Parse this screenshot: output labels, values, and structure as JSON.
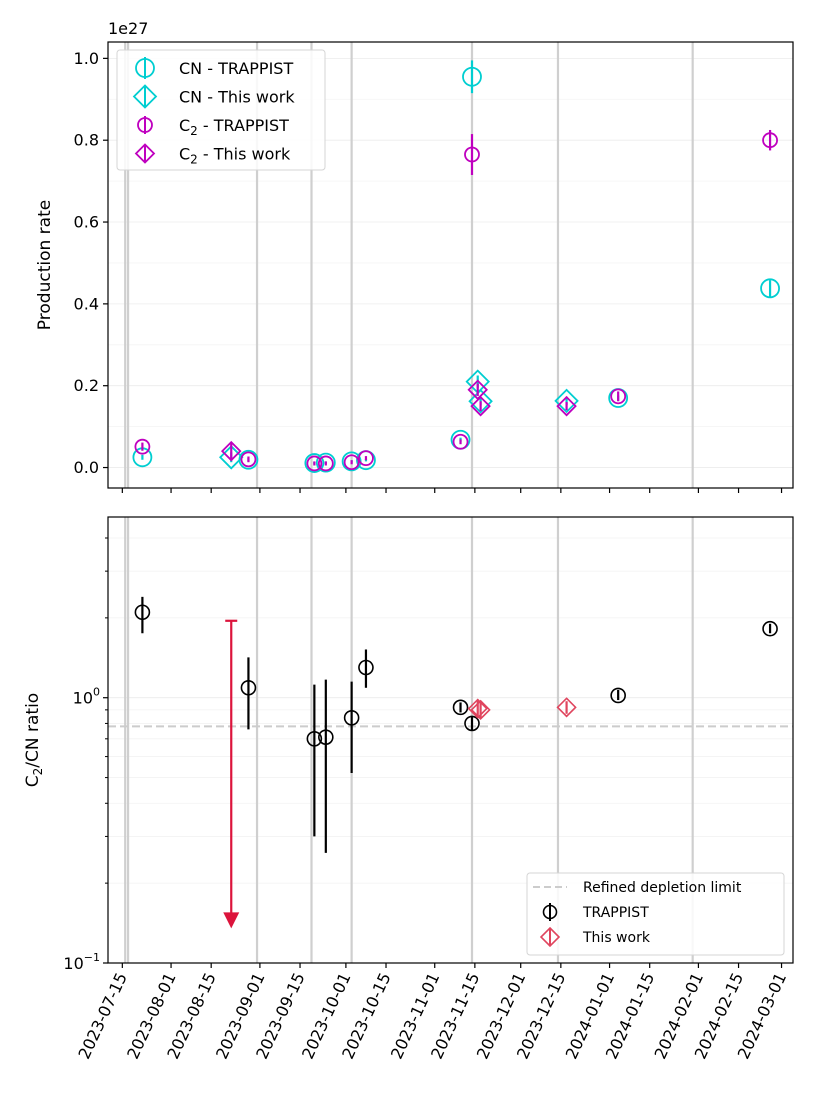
{
  "chart_data": [
    {
      "type": "scatter",
      "ylabel": "Production rate",
      "offset_label": "1e27",
      "y_ticks": [
        "0.0",
        "0.2",
        "0.4",
        "0.6",
        "0.8",
        "1.0"
      ],
      "ylim": [
        -0.05,
        1.04
      ],
      "xlim": [
        "2023-07-10",
        "2024-03-05"
      ],
      "legend": [
        {
          "label": "CN - TRAPPIST",
          "marker": "circle",
          "color": "#00CED1"
        },
        {
          "label": "CN - This work",
          "marker": "diamond",
          "color": "#00CED1"
        },
        {
          "label_main": "C",
          "label_sub": "2",
          "label_rest": " - TRAPPIST",
          "marker": "circle",
          "color": "#BF00BF"
        },
        {
          "label_main": "C",
          "label_sub": "2",
          "label_rest": " - This work",
          "marker": "diamond",
          "color": "#BF00BF"
        }
      ],
      "series": [
        {
          "name": "CN - TRAPPIST",
          "marker": "circle",
          "color": "#00CED1",
          "points": [
            {
              "x": "2023-07-22",
              "y": 0.025,
              "err": 0.006
            },
            {
              "x": "2023-08-28",
              "y": 0.019,
              "err": 0.004
            },
            {
              "x": "2023-09-20",
              "y": 0.011,
              "err": 0.003
            },
            {
              "x": "2023-09-24",
              "y": 0.012,
              "err": 0.003
            },
            {
              "x": "2023-10-03",
              "y": 0.015,
              "err": 0.003
            },
            {
              "x": "2023-10-08",
              "y": 0.018,
              "err": 0.003
            },
            {
              "x": "2023-11-10",
              "y": 0.068,
              "err": 0.005
            },
            {
              "x": "2023-11-14",
              "y": 0.955,
              "err": 0.04
            },
            {
              "x": "2024-01-04",
              "y": 0.17,
              "err": 0.006
            },
            {
              "x": "2024-02-26",
              "y": 0.438,
              "err": 0.02
            }
          ]
        },
        {
          "name": "CN - This work",
          "marker": "diamond",
          "color": "#00CED1",
          "points": [
            {
              "x": "2023-08-22",
              "y": 0.025,
              "err": 0.012
            },
            {
              "x": "2023-11-16",
              "y": 0.21,
              "err": 0.015
            },
            {
              "x": "2023-11-17",
              "y": 0.162,
              "err": 0.01
            },
            {
              "x": "2023-12-17",
              "y": 0.163,
              "err": 0.01
            }
          ]
        },
        {
          "name": "C2 - TRAPPIST",
          "marker": "circle",
          "color": "#BF00BF",
          "points": [
            {
              "x": "2023-07-22",
              "y": 0.051,
              "err": 0.01
            },
            {
              "x": "2023-08-28",
              "y": 0.02,
              "err": 0.007
            },
            {
              "x": "2023-09-20",
              "y": 0.01,
              "err": 0.005
            },
            {
              "x": "2023-09-24",
              "y": 0.01,
              "err": 0.005
            },
            {
              "x": "2023-10-03",
              "y": 0.013,
              "err": 0.005
            },
            {
              "x": "2023-10-08",
              "y": 0.023,
              "err": 0.005
            },
            {
              "x": "2023-11-10",
              "y": 0.063,
              "err": 0.006
            },
            {
              "x": "2023-11-14",
              "y": 0.765,
              "err": 0.05
            },
            {
              "x": "2024-01-04",
              "y": 0.174,
              "err": 0.012
            },
            {
              "x": "2024-02-26",
              "y": 0.8,
              "err": 0.025
            }
          ]
        },
        {
          "name": "C2 - This work",
          "marker": "diamond",
          "color": "#BF00BF",
          "points": [
            {
              "x": "2023-08-22",
              "y": 0.04,
              "err": 0.02
            },
            {
              "x": "2023-11-16",
              "y": 0.19,
              "err": 0.015
            },
            {
              "x": "2023-11-17",
              "y": 0.15,
              "err": 0.012
            },
            {
              "x": "2023-12-17",
              "y": 0.15,
              "err": 0.01
            }
          ]
        }
      ]
    },
    {
      "type": "scatter",
      "ylabel_main": "C",
      "ylabel_sub": "2",
      "ylabel_rest": "/CN ratio",
      "yscale": "log",
      "ylim": [
        0.1,
        4.8
      ],
      "y_ticks": [
        {
          "value": 1.0,
          "main": "10",
          "sup": "0"
        },
        {
          "value": 0.1,
          "main": "10",
          "sup": "−1"
        }
      ],
      "xlim": [
        "2023-07-10",
        "2024-03-05"
      ],
      "depletion_limit": 0.78,
      "legend": [
        {
          "label": "Refined depletion limit",
          "style": "dashed",
          "color": "#CCCCCC"
        },
        {
          "label": "TRAPPIST",
          "marker": "circle",
          "color": "#000000"
        },
        {
          "label": "This work",
          "marker": "diamond",
          "color": "#E0455E"
        }
      ],
      "series": [
        {
          "name": "TRAPPIST",
          "marker": "circle",
          "color": "#000000",
          "points": [
            {
              "x": "2023-07-22",
              "y": 2.1,
              "lo": 1.75,
              "hi": 2.4
            },
            {
              "x": "2023-08-28",
              "y": 1.09,
              "lo": 0.76,
              "hi": 1.42
            },
            {
              "x": "2023-09-20",
              "y": 0.7,
              "lo": 0.3,
              "hi": 1.12
            },
            {
              "x": "2023-09-24",
              "y": 0.71,
              "lo": 0.26,
              "hi": 1.17
            },
            {
              "x": "2023-10-03",
              "y": 0.84,
              "lo": 0.52,
              "hi": 1.15
            },
            {
              "x": "2023-10-08",
              "y": 1.3,
              "lo": 1.09,
              "hi": 1.52
            },
            {
              "x": "2023-11-10",
              "y": 0.92,
              "lo": 0.88,
              "hi": 0.96
            },
            {
              "x": "2023-11-14",
              "y": 0.8,
              "lo": 0.75,
              "hi": 0.85
            },
            {
              "x": "2024-01-04",
              "y": 1.02,
              "lo": 0.98,
              "hi": 1.07
            },
            {
              "x": "2024-02-26",
              "y": 1.82,
              "lo": 1.75,
              "hi": 1.9
            }
          ]
        },
        {
          "name": "This work",
          "marker": "diamond",
          "color": "#E0455E",
          "points": [
            {
              "x": "2023-11-16",
              "y": 0.91,
              "lo": 0.84,
              "hi": 0.98
            },
            {
              "x": "2023-11-17",
              "y": 0.9,
              "lo": 0.84,
              "hi": 0.96
            },
            {
              "x": "2023-12-17",
              "y": 0.92,
              "lo": 0.87,
              "hi": 0.97
            }
          ]
        }
      ],
      "upper_limit": {
        "x": "2023-08-22",
        "top": 1.95,
        "bottom": 0.135,
        "color": "#DC143C"
      }
    }
  ],
  "shared": {
    "x_ticks": [
      "2023-07-15",
      "2023-08-01",
      "2023-08-15",
      "2023-09-01",
      "2023-09-15",
      "2023-10-01",
      "2023-10-15",
      "2023-11-01",
      "2023-11-15",
      "2023-12-01",
      "2023-12-15",
      "2024-01-01",
      "2024-01-15",
      "2024-02-01",
      "2024-02-15",
      "2024-03-01"
    ],
    "vertical_lines": [
      "2023-07-16",
      "2023-07-17",
      "2023-08-31",
      "2023-09-19",
      "2023-10-03",
      "2023-11-14",
      "2023-12-14",
      "2024-01-30"
    ]
  }
}
